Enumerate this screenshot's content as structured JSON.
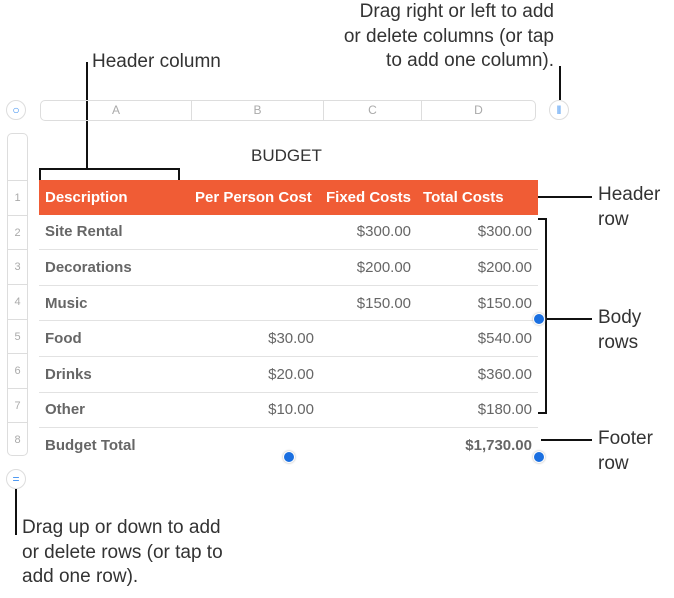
{
  "callouts": {
    "header_column": "Header column",
    "columns": [
      "Drag right or left to add",
      "or delete columns (or tap",
      "to add one column)."
    ],
    "header_row": [
      "Header",
      "row"
    ],
    "body_rows": [
      "Body",
      "rows"
    ],
    "footer_row": [
      "Footer",
      "row"
    ],
    "rows": [
      "Drag up or down to add",
      "or delete rows (or tap to",
      "add one row)."
    ]
  },
  "column_letters": [
    "A",
    "B",
    "C",
    "D"
  ],
  "row_numbers": [
    "1",
    "2",
    "3",
    "4",
    "5",
    "6",
    "7",
    "8"
  ],
  "table": {
    "title": "BUDGET",
    "headers": [
      "Description",
      "Per Person Cost",
      "Fixed Costs",
      "Total Costs"
    ],
    "rows": [
      [
        "Site Rental",
        "",
        "$300.00",
        "$300.00"
      ],
      [
        "Decorations",
        "",
        "$200.00",
        "$200.00"
      ],
      [
        "Music",
        "",
        "$150.00",
        "$150.00"
      ],
      [
        "Food",
        "$30.00",
        "",
        "$540.00"
      ],
      [
        "Drinks",
        "$20.00",
        "",
        "$360.00"
      ],
      [
        "Other",
        "$10.00",
        "",
        "$180.00"
      ]
    ],
    "footer": [
      "Budget Total",
      "",
      "",
      "$1,730.00"
    ],
    "header_color": "#F05C35"
  },
  "icons": {
    "table_select": "circle-icon",
    "add_column": "pause-bars-icon",
    "add_row": "equals-icon"
  }
}
